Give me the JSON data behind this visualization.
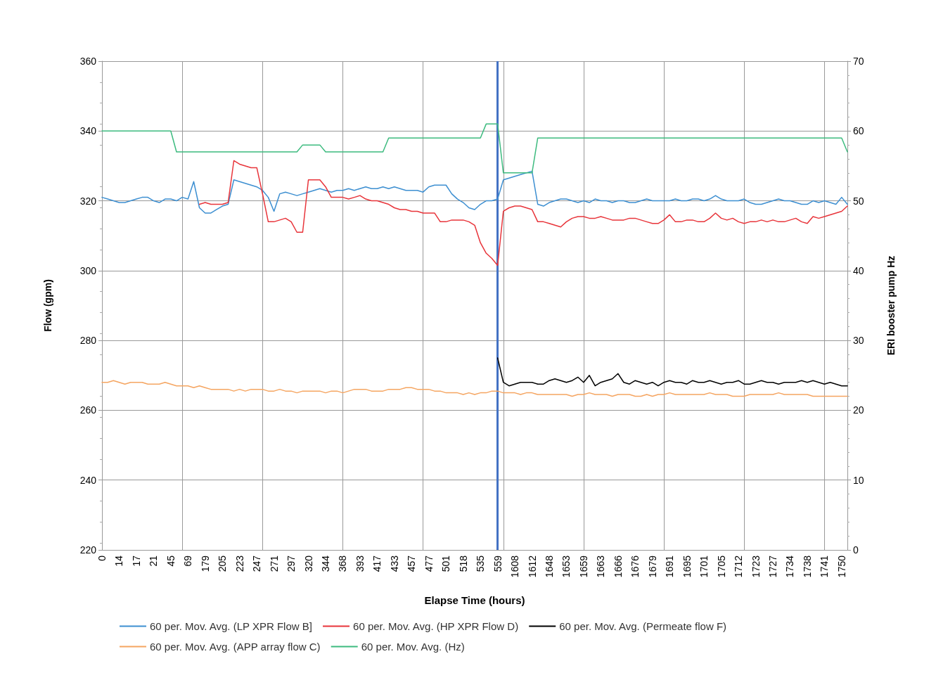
{
  "chart_data": {
    "type": "line",
    "xlabel": "Elapse Time (hours)",
    "ylabel": "Flow (gpm)",
    "y2label": "ERI booster pump Hz",
    "categories": [
      "0",
      null,
      null,
      "14",
      null,
      null,
      "17",
      null,
      null,
      "21",
      null,
      null,
      "45",
      null,
      null,
      "69",
      null,
      null,
      "179",
      null,
      null,
      "205",
      null,
      null,
      "223",
      null,
      null,
      "247",
      null,
      null,
      "271",
      null,
      null,
      "297",
      null,
      null,
      "320",
      null,
      null,
      "344",
      null,
      null,
      "368",
      null,
      null,
      "393",
      null,
      null,
      "417",
      null,
      null,
      "433",
      null,
      null,
      "457",
      null,
      null,
      "477",
      null,
      null,
      "501",
      null,
      null,
      "518",
      null,
      null,
      "535",
      null,
      null,
      "559",
      null,
      null,
      "1608",
      null,
      null,
      "1612",
      null,
      null,
      "1648",
      null,
      null,
      "1653",
      null,
      null,
      "1659",
      null,
      null,
      "1663",
      null,
      null,
      "1666",
      null,
      null,
      "1676",
      null,
      null,
      "1679",
      null,
      null,
      "1691",
      null,
      null,
      "1695",
      null,
      null,
      "1701",
      null,
      null,
      "1705",
      null,
      null,
      "1712",
      null,
      null,
      "1723",
      null,
      null,
      "1727",
      null,
      null,
      "1734",
      null,
      null,
      "1738",
      null,
      null,
      "1741",
      null,
      null,
      "1750",
      null
    ],
    "ylim": [
      220,
      360
    ],
    "yticks": [
      220,
      240,
      260,
      280,
      300,
      320,
      340,
      360
    ],
    "y2lim": [
      0,
      70
    ],
    "y2ticks": [
      0,
      10,
      20,
      30,
      40,
      50,
      60,
      70
    ],
    "grid": true,
    "legend": "bottom",
    "ref_lines": [
      {
        "axis": "x",
        "value": "559",
        "color": "#4472c4"
      }
    ],
    "series": [
      {
        "name": "60 per. Mov. Avg. (LP XPR Flow B]",
        "color": "#3d8fd1",
        "values": [
          321,
          320.5,
          320,
          319.5,
          319.5,
          320,
          320.5,
          321,
          321,
          320,
          319.5,
          320.5,
          320.5,
          320,
          321,
          320.5,
          325.5,
          318,
          316.5,
          316.5,
          317.5,
          318.5,
          319,
          326,
          325.5,
          325,
          324.5,
          324,
          323,
          321,
          317,
          322,
          322.5,
          322,
          321.5,
          322,
          322.5,
          323,
          323.5,
          323,
          322.5,
          323,
          323,
          323.5,
          323,
          323.5,
          324,
          323.5,
          323.5,
          324,
          323.5,
          324,
          323.5,
          323,
          323,
          323,
          322.5,
          324,
          324.5,
          324.5,
          324.5,
          322,
          320.5,
          319.5,
          318,
          317.5,
          319,
          320,
          320,
          320.5,
          326,
          326.5,
          327,
          327.5,
          328,
          328.5,
          319,
          318.5,
          319.5,
          320,
          320.5,
          320.5,
          320,
          319.5,
          320,
          319.5,
          320.5,
          320,
          320,
          319.5,
          320,
          320,
          319.5,
          319.5,
          320,
          320.5,
          320,
          320,
          320,
          320,
          320.5,
          320,
          320,
          320.5,
          320.5,
          320,
          320.5,
          321.5,
          320.5,
          320,
          320,
          320,
          320.5,
          319.5,
          319,
          319,
          319.5,
          320,
          320.5,
          320,
          320,
          319.5,
          319,
          319,
          320,
          319.5,
          320,
          319.5,
          319,
          321,
          319
        ]
      },
      {
        "name": "60 per. Mov. Avg. (HP XPR Flow D)",
        "color": "#e8343a",
        "values": [
          null,
          null,
          null,
          null,
          null,
          null,
          null,
          null,
          null,
          null,
          null,
          null,
          null,
          null,
          null,
          null,
          null,
          319,
          319.5,
          319,
          319,
          319,
          319.5,
          331.5,
          330.5,
          330,
          329.5,
          329.5,
          322,
          314,
          314,
          314.5,
          315,
          314,
          311,
          311,
          326,
          326,
          326,
          324,
          321,
          321,
          321,
          320.5,
          321,
          321.5,
          320.5,
          320,
          320,
          319.5,
          319,
          318,
          317.5,
          317.5,
          317,
          317,
          316.5,
          316.5,
          316.5,
          314,
          314,
          314.5,
          314.5,
          314.5,
          314,
          313,
          308,
          305,
          303.5,
          301.5,
          317,
          318,
          318.5,
          318.5,
          318,
          317.5,
          314,
          314,
          313.5,
          313,
          312.5,
          314,
          315,
          315.5,
          315.5,
          315,
          315,
          315.5,
          315,
          314.5,
          314.5,
          314.5,
          315,
          315,
          314.5,
          314,
          313.5,
          313.5,
          314.5,
          316,
          314,
          314,
          314.5,
          314.5,
          314,
          314,
          315,
          316.5,
          315,
          314.5,
          315,
          314,
          313.5,
          314,
          314,
          314.5,
          314,
          314.5,
          314,
          314,
          314.5,
          315,
          314,
          313.5,
          315.5,
          315,
          315.5,
          316,
          316.5,
          317,
          318.5
        ]
      },
      {
        "name": "60 per. Mov. Avg. (Permeate flow F)",
        "color": "#000000",
        "values": [
          null,
          null,
          null,
          null,
          null,
          null,
          null,
          null,
          null,
          null,
          null,
          null,
          null,
          null,
          null,
          null,
          null,
          null,
          null,
          null,
          null,
          null,
          null,
          null,
          null,
          null,
          null,
          null,
          null,
          null,
          null,
          null,
          null,
          null,
          null,
          null,
          null,
          null,
          null,
          null,
          null,
          null,
          null,
          null,
          null,
          null,
          null,
          null,
          null,
          null,
          null,
          null,
          null,
          null,
          null,
          null,
          null,
          null,
          null,
          null,
          null,
          null,
          null,
          null,
          null,
          null,
          null,
          null,
          null,
          275,
          268,
          267,
          267.5,
          268,
          268,
          268,
          267.5,
          267.5,
          268.5,
          269,
          268.5,
          268,
          268.5,
          269.5,
          268,
          270,
          267,
          268,
          268.5,
          269,
          270.5,
          268,
          267.5,
          268.5,
          268,
          267.5,
          268,
          267,
          268,
          268.5,
          268,
          268,
          267.5,
          268.5,
          268,
          268,
          268.5,
          268,
          267.5,
          268,
          268,
          268.5,
          267.5,
          267.5,
          268,
          268.5,
          268,
          268,
          267.5,
          268,
          268,
          268,
          268.5,
          268,
          268.5,
          268,
          267.5,
          268,
          267.5,
          267,
          267
        ]
      },
      {
        "name": "60 per. Mov. Avg. (APP array flow C)",
        "color": "#f5a561",
        "values": [
          268,
          268,
          268.5,
          268,
          267.5,
          268,
          268,
          268,
          267.5,
          267.5,
          267.5,
          268,
          267.5,
          267,
          267,
          267,
          266.5,
          267,
          266.5,
          266,
          266,
          266,
          266,
          265.5,
          266,
          265.5,
          266,
          266,
          266,
          265.5,
          265.5,
          266,
          265.5,
          265.5,
          265,
          265.5,
          265.5,
          265.5,
          265.5,
          265,
          265.5,
          265.5,
          265,
          265.5,
          266,
          266,
          266,
          265.5,
          265.5,
          265.5,
          266,
          266,
          266,
          266.5,
          266.5,
          266,
          266,
          266,
          265.5,
          265.5,
          265,
          265,
          265,
          264.5,
          265,
          264.5,
          265,
          265,
          265.5,
          265.5,
          265,
          265,
          265,
          264.5,
          265,
          265,
          264.5,
          264.5,
          264.5,
          264.5,
          264.5,
          264.5,
          264,
          264.5,
          264.5,
          265,
          264.5,
          264.5,
          264.5,
          264,
          264.5,
          264.5,
          264.5,
          264,
          264,
          264.5,
          264,
          264.5,
          264.5,
          265,
          264.5,
          264.5,
          264.5,
          264.5,
          264.5,
          264.5,
          265,
          264.5,
          264.5,
          264.5,
          264,
          264,
          264,
          264.5,
          264.5,
          264.5,
          264.5,
          264.5,
          265,
          264.5,
          264.5,
          264.5,
          264.5,
          264.5,
          264,
          264,
          264,
          264,
          264,
          264,
          264
        ]
      },
      {
        "name": "60 per. Mov. Avg. (Hz)",
        "color": "#3dbb7f",
        "axis": "y2",
        "values": [
          60,
          60,
          60,
          60,
          60,
          60,
          60,
          60,
          60,
          60,
          60,
          60,
          60,
          57,
          57,
          57,
          57,
          57,
          57,
          57,
          57,
          57,
          57,
          57,
          57,
          57,
          57,
          57,
          57,
          57,
          57,
          57,
          57,
          57,
          57,
          58,
          58,
          58,
          58,
          57,
          57,
          57,
          57,
          57,
          57,
          57,
          57,
          57,
          57,
          57,
          59,
          59,
          59,
          59,
          59,
          59,
          59,
          59,
          59,
          59,
          59,
          59,
          59,
          59,
          59,
          59,
          59,
          61,
          61,
          61,
          54,
          54,
          54,
          54,
          54,
          54,
          59,
          59,
          59,
          59,
          59,
          59,
          59,
          59,
          59,
          59,
          59,
          59,
          59,
          59,
          59,
          59,
          59,
          59,
          59,
          59,
          59,
          59,
          59,
          59,
          59,
          59,
          59,
          59,
          59,
          59,
          59,
          59,
          59,
          59,
          59,
          59,
          59,
          59,
          59,
          59,
          59,
          59,
          59,
          59,
          59,
          59,
          59,
          59,
          59,
          59,
          59,
          59,
          59,
          59,
          57
        ]
      }
    ]
  }
}
